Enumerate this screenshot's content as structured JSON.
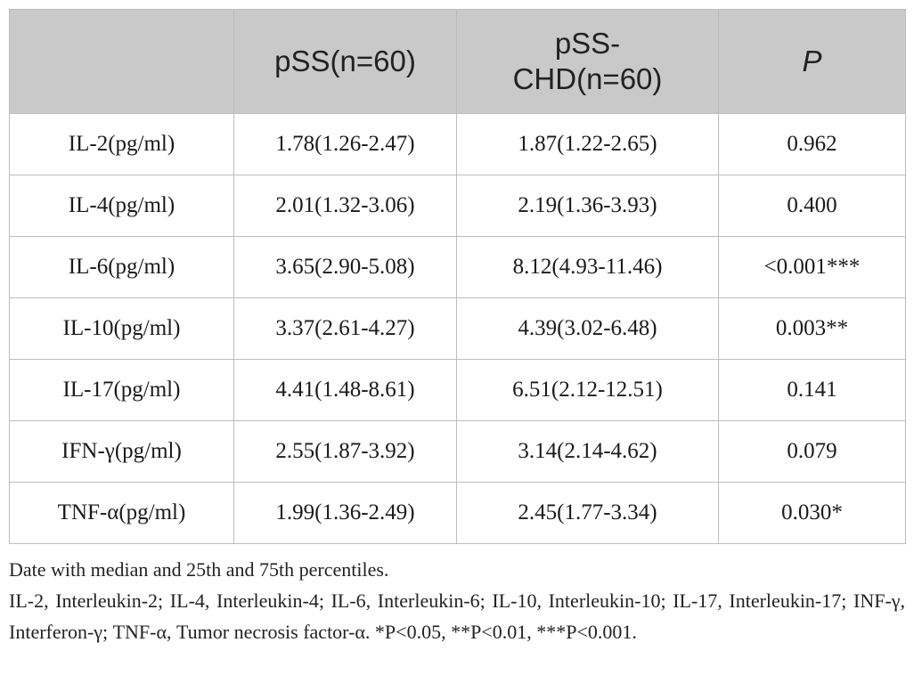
{
  "table": {
    "headers": [
      "",
      "pSS(n=60)",
      "pSS-\nCHD(n=60)",
      "P"
    ],
    "rows": [
      [
        "IL-2(pg/ml)",
        "1.78(1.26-2.47)",
        "1.87(1.22-2.65)",
        "0.962"
      ],
      [
        "IL-4(pg/ml)",
        "2.01(1.32-3.06)",
        "2.19(1.36-3.93)",
        "0.400"
      ],
      [
        "IL-6(pg/ml)",
        "3.65(2.90-5.08)",
        "8.12(4.93-11.46)",
        "<0.001***"
      ],
      [
        "IL-10(pg/ml)",
        "3.37(2.61-4.27)",
        "4.39(3.02-6.48)",
        "0.003**"
      ],
      [
        "IL-17(pg/ml)",
        "4.41(1.48-8.61)",
        "6.51(2.12-12.51)",
        "0.141"
      ],
      [
        "IFN-γ(pg/ml)",
        "2.55(1.87-3.92)",
        "3.14(2.14-4.62)",
        "0.079"
      ],
      [
        "TNF-α(pg/ml)",
        "1.99(1.36-2.49)",
        "2.45(1.77-3.34)",
        "0.030*"
      ]
    ]
  },
  "footnotes": {
    "note1": "Date with median and 25th and 75th percentiles.",
    "note2": "IL-2, Interleukin-2; IL-4, Interleukin-4; IL-6, Interleukin-6; IL-10, Interleukin-10; IL-17, Interleukin-17; INF-γ, Interferon-γ; TNF-α, Tumor necrosis factor-α. *P<0.05, **P<0.01, ***P<0.001."
  }
}
